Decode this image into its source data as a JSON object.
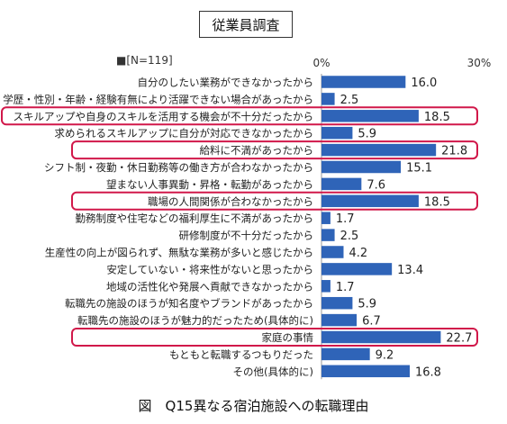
{
  "header": {
    "title": "従業員調査"
  },
  "caption": "図　Q15異なる宿泊施設への転職理由",
  "chart_data": {
    "type": "bar",
    "orientation": "horizontal",
    "title": "従業員調査",
    "legend": "■[N=119]",
    "xlim": [
      0,
      30
    ],
    "tick_labels": [
      "0%",
      "30%"
    ],
    "bar_color": "#2f64b8",
    "highlight_color": "#d1184a",
    "grid": false,
    "categories": [
      "自分のしたい業務ができなかったから",
      "学歴・性別・年齢・経験有無により活躍できない場合があったから",
      "スキルアップや自身のスキルを活用する機会が不十分だったから",
      "求められるスキルアップに自分が対応できなかったから",
      "給料に不満があったから",
      "シフト制・夜勤・休日勤務等の働き方が合わなかったから",
      "望まない人事異動・昇格・転勤があったから",
      "職場の人間関係が合わなかったから",
      "勤務制度や住宅などの福利厚生に不満があったから",
      "研修制度が不十分だったから",
      "生産性の向上が図られず、無駄な業務が多いと感じたから",
      "安定していない・将来性がないと思ったから",
      "地域の活性化や発展へ貢献できなかったから",
      "転職先の施設のほうが知名度やブランドがあったから",
      "転職先の施設のほうが魅力的だったため(具体的に)",
      "家庭の事情",
      "もともと転職するつもりだった",
      "その他(具体的に)"
    ],
    "values": [
      16.0,
      2.5,
      18.5,
      5.9,
      21.8,
      15.1,
      7.6,
      18.5,
      1.7,
      2.5,
      4.2,
      13.4,
      1.7,
      5.9,
      6.7,
      22.7,
      9.2,
      16.8
    ],
    "value_labels": [
      "16.0",
      "2.5",
      "18.5",
      "5.9",
      "21.8",
      "15.1",
      "7.6",
      "18.5",
      "1.7",
      "2.5",
      "4.2",
      "13.4",
      "1.7",
      "5.9",
      "6.7",
      "22.7",
      "9.2",
      "16.8"
    ],
    "highlighted": [
      2,
      4,
      7,
      15
    ]
  }
}
